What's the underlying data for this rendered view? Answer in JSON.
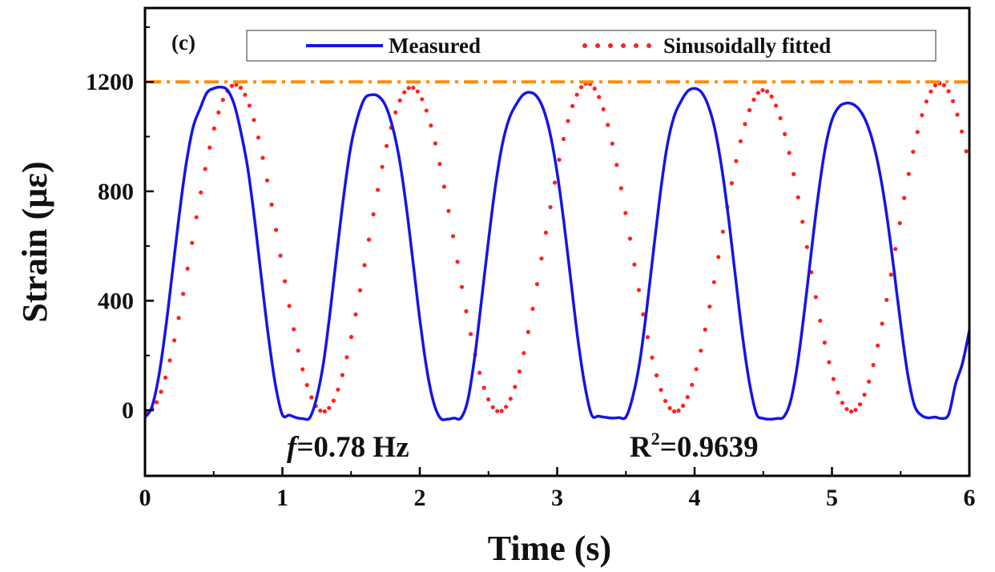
{
  "chart_data": {
    "type": "line",
    "panel_label": "(c)",
    "xlabel": "Time (s)",
    "ylabel": "Strain (με)",
    "xlim": [
      0,
      6
    ],
    "ylim": [
      -240,
      1470
    ],
    "x_ticks": [
      "0",
      "1",
      "2",
      "3",
      "4",
      "5",
      "6"
    ],
    "y_ticks": [
      "0",
      "400",
      "800",
      "1200"
    ],
    "grid": false,
    "legend_position": "top",
    "reference_line": {
      "y": 1200,
      "color": "#ff8c00",
      "style": "dash-dot"
    },
    "annotations": {
      "frequency": {
        "symbol": "f",
        "text": "=0.78 Hz"
      },
      "r_squared": {
        "base": "R",
        "sup": "2",
        "text": "=0.9639"
      }
    },
    "series": [
      {
        "name": "Measured",
        "style": "solid",
        "color": "#1515e6",
        "x": [
          0,
          0.05,
          0.1,
          0.15,
          0.2,
          0.25,
          0.3,
          0.35,
          0.4,
          0.45,
          0.5,
          0.55,
          0.6,
          0.65,
          0.7,
          0.75,
          0.8,
          0.85,
          0.9,
          0.95,
          1.0,
          1.05,
          1.1,
          1.15,
          1.2,
          1.25,
          1.3,
          1.35,
          1.4,
          1.45,
          1.5,
          1.55,
          1.6,
          1.65,
          1.7,
          1.75,
          1.8,
          1.85,
          1.9,
          1.95,
          2.0,
          2.05,
          2.1,
          2.15,
          2.2,
          2.25,
          2.3,
          2.35,
          2.4,
          2.45,
          2.5,
          2.55,
          2.6,
          2.65,
          2.7,
          2.75,
          2.8,
          2.85,
          2.9,
          2.95,
          3.0,
          3.05,
          3.1,
          3.15,
          3.2,
          3.25,
          3.3,
          3.35,
          3.4,
          3.45,
          3.5,
          3.55,
          3.6,
          3.65,
          3.7,
          3.75,
          3.8,
          3.85,
          3.9,
          3.95,
          4.0,
          4.05,
          4.1,
          4.15,
          4.2,
          4.25,
          4.3,
          4.35,
          4.4,
          4.45,
          4.5,
          4.55,
          4.6,
          4.65,
          4.7,
          4.75,
          4.8,
          4.85,
          4.9,
          4.95,
          5.0,
          5.05,
          5.1,
          5.15,
          5.2,
          5.25,
          5.3,
          5.35,
          5.4,
          5.45,
          5.5,
          5.55,
          5.6,
          5.65,
          5.7,
          5.75,
          5.8,
          5.85,
          5.9,
          5.95,
          6.0
        ],
        "y": [
          -26,
          12,
          124,
          297,
          506,
          718,
          901,
          1034,
          1101,
          1160,
          1176,
          1181,
          1170,
          1116,
          1012,
          878,
          687,
          471,
          262,
          91,
          -17,
          -18,
          -27,
          -31,
          -27,
          47,
          177,
          370,
          590,
          798,
          970,
          1075,
          1140,
          1153,
          1147,
          1114,
          1039,
          922,
          752,
          545,
          333,
          152,
          29,
          -29,
          -33,
          -29,
          -28,
          38,
          195,
          405,
          621,
          818,
          970,
          1065,
          1116,
          1152,
          1162,
          1148,
          1100,
          1008,
          867,
          682,
          471,
          262,
          94,
          -17,
          -22,
          -26,
          -29,
          -27,
          -25,
          49,
          174,
          362,
          580,
          790,
          965,
          1072,
          1128,
          1166,
          1176,
          1162,
          1113,
          1022,
          878,
          691,
          476,
          267,
          98,
          -13,
          -30,
          -33,
          -30,
          -24,
          35,
          171,
          365,
          581,
          787,
          955,
          1061,
          1108,
          1122,
          1119,
          1098,
          1053,
          977,
          863,
          708,
          517,
          315,
          136,
          18,
          -18,
          -28,
          -25,
          -30,
          -14,
          96,
          172,
          291
        ]
      },
      {
        "name": "Sinusoidally fitted",
        "style": "dotted",
        "color": "#ff2020",
        "amplitude": 600,
        "offset": 600,
        "frequency": 0.78,
        "phase": 0.015,
        "cycle_peaks": [
          1190,
          1180,
          1195,
          1170,
          1195
        ],
        "x_range": [
          0,
          6
        ]
      }
    ]
  }
}
